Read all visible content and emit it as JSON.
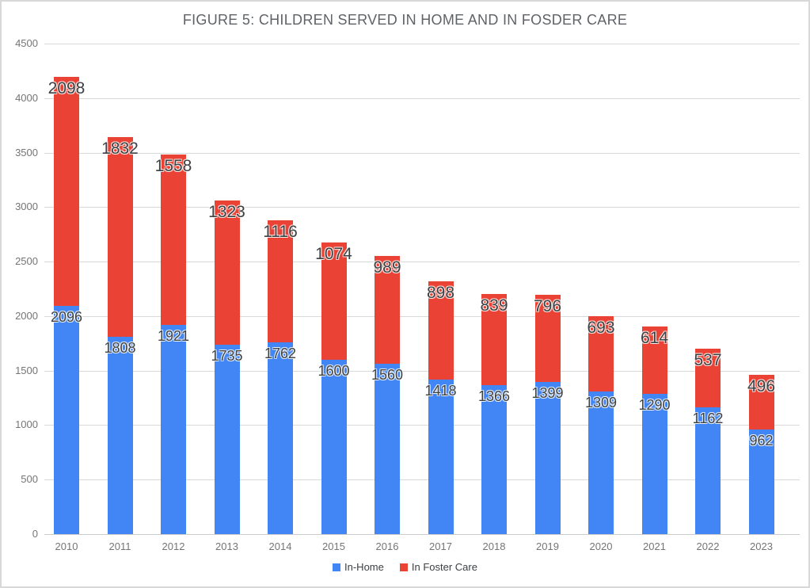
{
  "chart_data": {
    "type": "bar",
    "stacked": true,
    "title": "FIGURE 5: CHILDREN SERVED IN HOME AND IN FOSDER CARE",
    "categories": [
      "2010",
      "2011",
      "2012",
      "2013",
      "2014",
      "2015",
      "2016",
      "2017",
      "2018",
      "2019",
      "2020",
      "2021",
      "2022",
      "2023"
    ],
    "series": [
      {
        "name": "In-Home",
        "color": "#4285f4",
        "values": [
          2096,
          1808,
          1921,
          1735,
          1762,
          1600,
          1560,
          1418,
          1366,
          1399,
          1309,
          1290,
          1162,
          962
        ]
      },
      {
        "name": "In Foster Care",
        "color": "#ea4335",
        "values": [
          2098,
          1832,
          1558,
          1323,
          1116,
          1074,
          989,
          898,
          839,
          796,
          693,
          614,
          537,
          496
        ]
      }
    ],
    "xlabel": "",
    "ylabel": "",
    "ylim": [
      0,
      4500
    ],
    "yticks": [
      0,
      500,
      1000,
      1500,
      2000,
      2500,
      3000,
      3500,
      4000,
      4500
    ],
    "grid": true,
    "legend_position": "bottom",
    "annotations": true,
    "annotation_color": "#3c4043",
    "gridline_color": "#d9d9d9",
    "title_color": "#5f6368",
    "tick_label_color": "#757575"
  }
}
